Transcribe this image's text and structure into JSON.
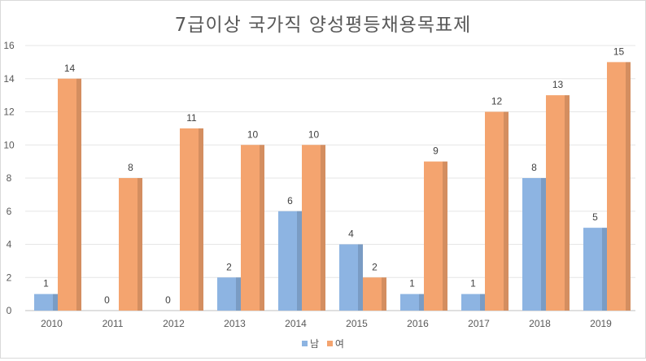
{
  "chart_data": {
    "type": "bar",
    "title": "7급이상 국가직 양성평등채용목표제",
    "categories": [
      "2010",
      "2011",
      "2012",
      "2013",
      "2014",
      "2015",
      "2016",
      "2017",
      "2018",
      "2019"
    ],
    "series": [
      {
        "name": "남",
        "color": "#8db4e2",
        "values": [
          1,
          0,
          0,
          2,
          6,
          4,
          1,
          1,
          8,
          5
        ]
      },
      {
        "name": "여",
        "color": "#f4a46f",
        "values": [
          14,
          8,
          11,
          10,
          10,
          2,
          9,
          12,
          13,
          15
        ]
      }
    ],
    "ylim": [
      0,
      16
    ],
    "yticks": [
      0,
      2,
      4,
      6,
      8,
      10,
      12,
      14,
      16
    ],
    "grid": true,
    "legend_position": "bottom",
    "data_labels": true
  }
}
